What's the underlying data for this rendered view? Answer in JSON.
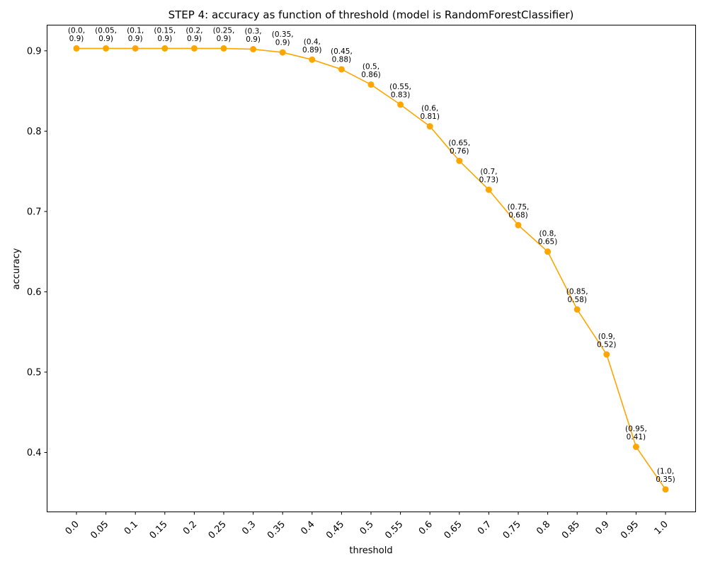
{
  "chart_data": {
    "type": "line",
    "title": "STEP 4: accuracy as function of threshold (model is RandomForestClassifier)",
    "xlabel": "threshold",
    "ylabel": "accuracy",
    "x_tick_labels": [
      "0.0",
      "0.05",
      "0.1",
      "0.15",
      "0.2",
      "0.25",
      "0.3",
      "0.35",
      "0.4",
      "0.45",
      "0.5",
      "0.55",
      "0.6",
      "0.65",
      "0.7",
      "0.75",
      "0.8",
      "0.85",
      "0.9",
      "0.95",
      "1.0"
    ],
    "y_ticks": [
      0.4,
      0.5,
      0.6,
      0.7,
      0.8,
      0.9
    ],
    "y_tick_labels": [
      "0.4",
      "0.5",
      "0.6",
      "0.7",
      "0.8",
      "0.9"
    ],
    "ylim": [
      0.326,
      0.932
    ],
    "grid": false,
    "legend": "none",
    "color": "#ffa500",
    "series": [
      {
        "x": [
          0.0,
          0.05,
          0.1,
          0.15,
          0.2,
          0.25,
          0.3,
          0.35,
          0.4,
          0.45,
          0.5,
          0.55,
          0.6,
          0.65,
          0.7,
          0.75,
          0.8,
          0.85,
          0.9,
          0.95,
          1.0
        ],
        "y": [
          0.903,
          0.903,
          0.903,
          0.903,
          0.903,
          0.903,
          0.902,
          0.898,
          0.889,
          0.877,
          0.858,
          0.833,
          0.806,
          0.763,
          0.727,
          0.683,
          0.65,
          0.578,
          0.522,
          0.407,
          0.354
        ],
        "labels": [
          [
            "(0.0,",
            "0.9)"
          ],
          [
            "(0.05,",
            "0.9)"
          ],
          [
            "(0.1,",
            "0.9)"
          ],
          [
            "(0.15,",
            "0.9)"
          ],
          [
            "(0.2,",
            "0.9)"
          ],
          [
            "(0.25,",
            "0.9)"
          ],
          [
            "(0.3,",
            "0.9)"
          ],
          [
            "(0.35,",
            "0.9)"
          ],
          [
            "(0.4,",
            "0.89)"
          ],
          [
            "(0.45,",
            "0.88)"
          ],
          [
            "(0.5,",
            "0.86)"
          ],
          [
            "(0.55,",
            "0.83)"
          ],
          [
            "(0.6,",
            "0.81)"
          ],
          [
            "(0.65,",
            "0.76)"
          ],
          [
            "(0.7,",
            "0.73)"
          ],
          [
            "(0.75,",
            "0.68)"
          ],
          [
            "(0.8,",
            "0.65)"
          ],
          [
            "(0.85,",
            "0.58)"
          ],
          [
            "(0.9,",
            "0.52)"
          ],
          [
            "(0.95,",
            "0.41)"
          ],
          [
            "(1.0,",
            "0.35)"
          ]
        ]
      }
    ]
  }
}
